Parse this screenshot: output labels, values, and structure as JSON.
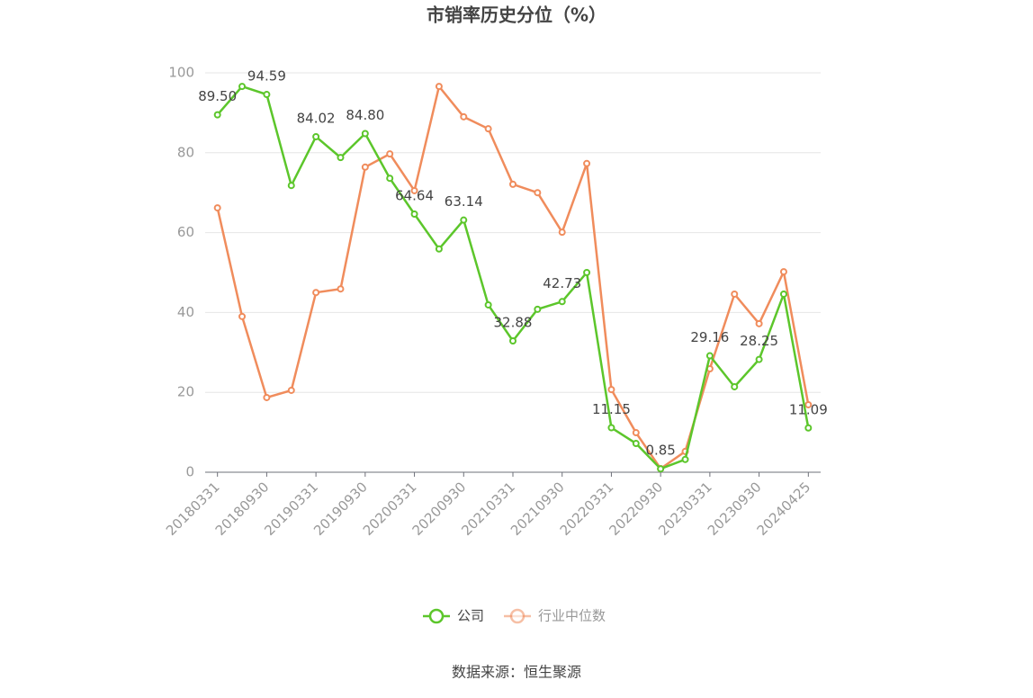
{
  "chart_data": {
    "type": "line",
    "title": "市销率历史分位（%）",
    "categories": [
      "20180331",
      null,
      "20180930",
      null,
      "20190331",
      null,
      "20190930",
      null,
      "20200331",
      null,
      "20200930",
      null,
      "20210331",
      null,
      "20210930",
      null,
      "20220331",
      null,
      "20220930",
      null,
      "20230331",
      null,
      "20230930",
      null,
      "20240425"
    ],
    "series": [
      {
        "name": "公司",
        "color": "#5cc62b",
        "values": [
          89.5,
          96.6,
          94.59,
          71.8,
          84.02,
          78.8,
          84.8,
          73.6,
          64.64,
          55.9,
          63.14,
          41.9,
          32.88,
          40.8,
          42.73,
          50.0,
          11.15,
          7.2,
          0.85,
          3.2,
          29.16,
          21.4,
          28.25,
          44.6,
          11.09
        ],
        "value_labels": [
          "89.50",
          null,
          "94.59",
          null,
          "84.02",
          null,
          "84.80",
          null,
          "64.64",
          null,
          "63.14",
          null,
          "32.88",
          null,
          "42.73",
          null,
          "11.15",
          null,
          "0.85",
          null,
          "29.16",
          null,
          "28.25",
          null,
          "11.09"
        ]
      },
      {
        "name": "行业中位数",
        "color": "#f08c5c",
        "values": [
          66.2,
          39.0,
          18.7,
          20.5,
          45.0,
          45.9,
          76.4,
          79.7,
          70.5,
          96.6,
          89.0,
          86.0,
          72.1,
          70.0,
          60.1,
          77.3,
          20.7,
          9.9,
          0.9,
          5.2,
          25.9,
          44.6,
          37.2,
          50.2,
          16.9
        ]
      }
    ],
    "ylim": [
      0,
      100
    ],
    "yticks": [
      0,
      20,
      40,
      60,
      80,
      100
    ],
    "grid": true,
    "source": "数据来源：恒生聚源"
  }
}
